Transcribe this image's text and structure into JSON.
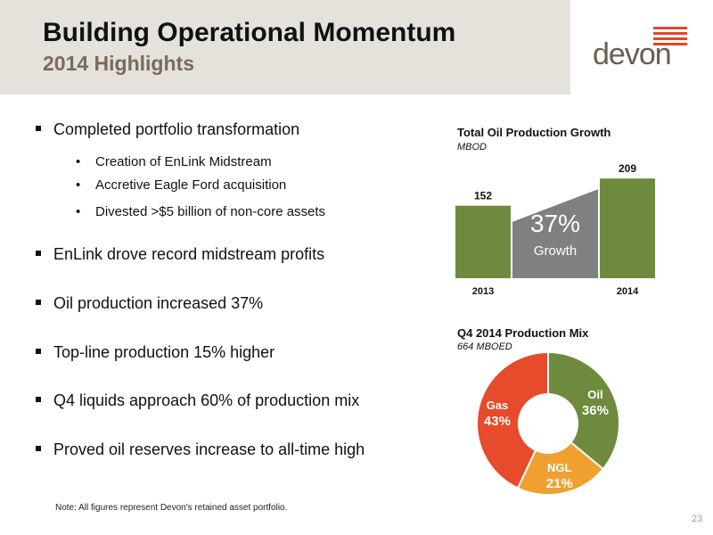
{
  "header": {
    "title": "Building Operational Momentum",
    "subtitle": "2014 Highlights"
  },
  "logo": {
    "text": "devon",
    "accent_color": "#e2462c"
  },
  "bullets": [
    {
      "text": "Completed portfolio transformation",
      "sub": [
        "Creation of EnLink Midstream",
        "Accretive Eagle Ford acquisition",
        "Divested >$5 billion of non-core assets"
      ]
    },
    {
      "text": "EnLink drove record midstream profits",
      "sub": []
    },
    {
      "text": "Oil production increased 37%",
      "sub": []
    },
    {
      "text": "Top-line production 15% higher",
      "sub": []
    },
    {
      "text": "Q4 liquids approach 60% of production mix",
      "sub": []
    },
    {
      "text": "Proved oil reserves increase to all-time high",
      "sub": []
    }
  ],
  "footer": {
    "note": "Note: All figures represent Devon's retained asset portfolio.",
    "page_number": "23"
  },
  "chart_data": [
    {
      "type": "bar",
      "title": "Total Oil Production Growth",
      "subtitle": "MBOD",
      "categories": [
        "2013",
        "2014"
      ],
      "values": [
        152,
        209
      ],
      "ylim": [
        0,
        240
      ],
      "bar_color": "#6e8b3d",
      "annotation": {
        "value": "37%",
        "label": "Growth",
        "color": "#808080"
      }
    },
    {
      "type": "pie",
      "title": "Q4 2014 Production Mix",
      "subtitle": "664 MBOED",
      "slices": [
        {
          "label": "Oil",
          "value": 36,
          "value_label": "36%",
          "color": "#6e8b3d"
        },
        {
          "label": "NGL",
          "value": 21,
          "value_label": "21%",
          "color": "#f0a030"
        },
        {
          "label": "Gas",
          "value": 43,
          "value_label": "43%",
          "color": "#e84a2c"
        }
      ]
    }
  ]
}
